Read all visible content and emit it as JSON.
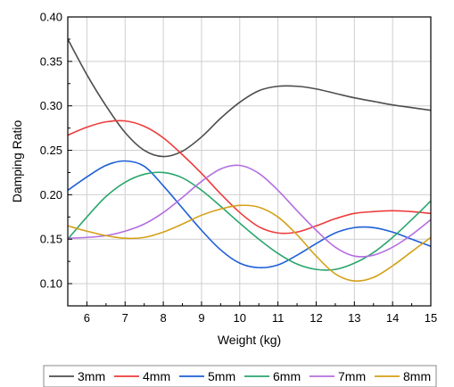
{
  "chart_data": {
    "type": "line",
    "title": "",
    "xlabel": "Weight (kg)",
    "ylabel": "Damping Ratio",
    "xlim": [
      5.5,
      15
    ],
    "ylim": [
      0.075,
      0.4
    ],
    "xticks": [
      6,
      7,
      8,
      9,
      10,
      11,
      12,
      13,
      14,
      15
    ],
    "xtick_labels": [
      "6",
      "7",
      "8",
      "9",
      "10",
      "11",
      "12",
      "13",
      "14",
      "15"
    ],
    "yticks": [
      0.1,
      0.15,
      0.2,
      0.25,
      0.3,
      0.35,
      0.4
    ],
    "ytick_labels": [
      "0.10",
      "0.15",
      "0.20",
      "0.25",
      "0.30",
      "0.35",
      "0.40"
    ],
    "grid": true,
    "legend_position": "bottom",
    "series": [
      {
        "name": "3mm",
        "color": "#4d4d4d",
        "x": [
          5.5,
          6,
          6.5,
          7,
          7.5,
          8,
          8.5,
          9,
          9.5,
          10,
          10.5,
          11,
          11.5,
          12,
          12.5,
          13,
          13.5,
          14,
          14.5,
          15
        ],
        "y": [
          0.375,
          0.335,
          0.3,
          0.27,
          0.25,
          0.243,
          0.249,
          0.265,
          0.286,
          0.304,
          0.317,
          0.322,
          0.322,
          0.319,
          0.314,
          0.309,
          0.305,
          0.301,
          0.298,
          0.295
        ]
      },
      {
        "name": "4mm",
        "color": "#ee3b3b",
        "x": [
          5.5,
          6,
          6.5,
          7,
          7.5,
          8,
          8.5,
          9,
          9.5,
          10,
          10.5,
          11,
          11.5,
          12,
          12.5,
          13,
          13.5,
          14,
          14.5,
          15
        ],
        "y": [
          0.267,
          0.276,
          0.282,
          0.283,
          0.277,
          0.264,
          0.245,
          0.224,
          0.201,
          0.18,
          0.164,
          0.157,
          0.158,
          0.165,
          0.173,
          0.179,
          0.181,
          0.182,
          0.181,
          0.179
        ]
      },
      {
        "name": "5mm",
        "color": "#1e5fd6",
        "x": [
          5.5,
          6,
          6.5,
          7,
          7.5,
          8,
          8.5,
          9,
          9.5,
          10,
          10.5,
          11,
          11.5,
          12,
          12.5,
          13,
          13.5,
          14,
          14.5,
          15
        ],
        "y": [
          0.205,
          0.22,
          0.233,
          0.238,
          0.232,
          0.21,
          0.185,
          0.16,
          0.138,
          0.123,
          0.118,
          0.121,
          0.132,
          0.145,
          0.157,
          0.163,
          0.163,
          0.158,
          0.15,
          0.142
        ]
      },
      {
        "name": "6mm",
        "color": "#2aa66e",
        "x": [
          5.5,
          6,
          6.5,
          7,
          7.5,
          8,
          8.5,
          9,
          9.5,
          10,
          10.5,
          11,
          11.5,
          12,
          12.5,
          13,
          13.5,
          14,
          14.5,
          15
        ],
        "y": [
          0.15,
          0.175,
          0.198,
          0.214,
          0.223,
          0.225,
          0.219,
          0.205,
          0.187,
          0.168,
          0.15,
          0.134,
          0.122,
          0.116,
          0.116,
          0.123,
          0.135,
          0.152,
          0.172,
          0.193
        ]
      },
      {
        "name": "7mm",
        "color": "#b46ee0",
        "x": [
          5.5,
          6,
          6.5,
          7,
          7.5,
          8,
          8.5,
          9,
          9.5,
          10,
          10.5,
          11,
          11.5,
          12,
          12.5,
          13,
          13.5,
          14,
          14.5,
          15
        ],
        "y": [
          0.151,
          0.152,
          0.154,
          0.159,
          0.167,
          0.18,
          0.197,
          0.215,
          0.229,
          0.233,
          0.224,
          0.205,
          0.182,
          0.16,
          0.141,
          0.131,
          0.132,
          0.141,
          0.155,
          0.172
        ]
      },
      {
        "name": "8mm",
        "color": "#d4a017",
        "x": [
          5.5,
          6,
          6.5,
          7,
          7.5,
          8,
          8.5,
          9,
          9.5,
          10,
          10.5,
          11,
          11.5,
          12,
          12.5,
          13,
          13.5,
          14,
          14.5,
          15
        ],
        "y": [
          0.165,
          0.159,
          0.154,
          0.151,
          0.152,
          0.158,
          0.167,
          0.177,
          0.184,
          0.188,
          0.186,
          0.175,
          0.155,
          0.131,
          0.111,
          0.103,
          0.107,
          0.12,
          0.136,
          0.152
        ]
      }
    ]
  }
}
